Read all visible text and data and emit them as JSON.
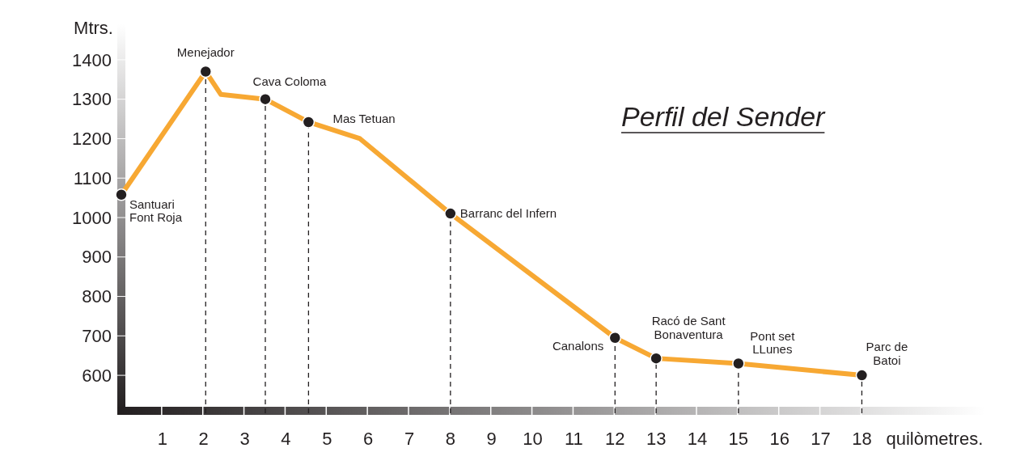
{
  "chart_data": {
    "type": "line",
    "title": "Perfil del Sender",
    "xlabel": "quilòmetres.",
    "ylabel": "Mtrs.",
    "xlim": [
      0,
      21
    ],
    "xticks": [
      1,
      2,
      3,
      4,
      5,
      6,
      7,
      8,
      9,
      10,
      11,
      12,
      13,
      14,
      15,
      16,
      17,
      18
    ],
    "ylim": [
      510,
      1490
    ],
    "yticks": [
      600,
      700,
      800,
      900,
      1000,
      1100,
      1200,
      1300,
      1400
    ],
    "grid": false,
    "series": [
      {
        "color": "#f7a833",
        "line_style": "solid",
        "marker": "none",
        "x": [
          0,
          2.05,
          2.42,
          3.5,
          4.55,
          5.8,
          8,
          12,
          13,
          15,
          18
        ],
        "values": [
          1058,
          1370,
          1312,
          1300,
          1242,
          1200,
          1010,
          695,
          643,
          630,
          600
        ]
      },
      {
        "type": "scatter",
        "color": "#231f20",
        "marker": "circle",
        "x": [
          0,
          2.05,
          3.5,
          4.55,
          8,
          12,
          13,
          15,
          18
        ],
        "values": [
          1058,
          1370,
          1300,
          1242,
          1010,
          695,
          643,
          630,
          600
        ]
      }
    ],
    "ref_lines": [
      {
        "axis": "x",
        "value": 2.05,
        "color": "#231f20",
        "line_style": "dashed"
      },
      {
        "axis": "x",
        "value": 3.5,
        "color": "#231f20",
        "line_style": "dashed"
      },
      {
        "axis": "x",
        "value": 4.55,
        "color": "#231f20",
        "line_style": "dashed"
      },
      {
        "axis": "x",
        "value": 8,
        "color": "#231f20",
        "line_style": "dashed"
      },
      {
        "axis": "x",
        "value": 12,
        "color": "#231f20",
        "line_style": "dashed"
      },
      {
        "axis": "x",
        "value": 13,
        "color": "#231f20",
        "line_style": "dashed"
      },
      {
        "axis": "x",
        "value": 15,
        "color": "#231f20",
        "line_style": "dashed"
      },
      {
        "axis": "x",
        "value": 18,
        "color": "#231f20",
        "line_style": "dashed"
      }
    ],
    "annotations": [
      {
        "text": "Santuari\nFont Roja",
        "x": 0,
        "y": 1058
      },
      {
        "text": "Menejador",
        "x": 2.05,
        "y": 1370
      },
      {
        "text": "Cava Coloma",
        "x": 3.5,
        "y": 1300
      },
      {
        "text": "Mas Tetuan",
        "x": 4.55,
        "y": 1242
      },
      {
        "text": "Barranc del Infern",
        "x": 8,
        "y": 1010
      },
      {
        "text": "Canalons",
        "x": 12,
        "y": 695
      },
      {
        "text": "Racó de Sant\nBonaventura",
        "x": 13,
        "y": 643
      },
      {
        "text": "Pont set\nLLunes",
        "x": 15,
        "y": 630
      },
      {
        "text": "Parc de\nBatoi",
        "x": 18,
        "y": 600
      }
    ]
  }
}
